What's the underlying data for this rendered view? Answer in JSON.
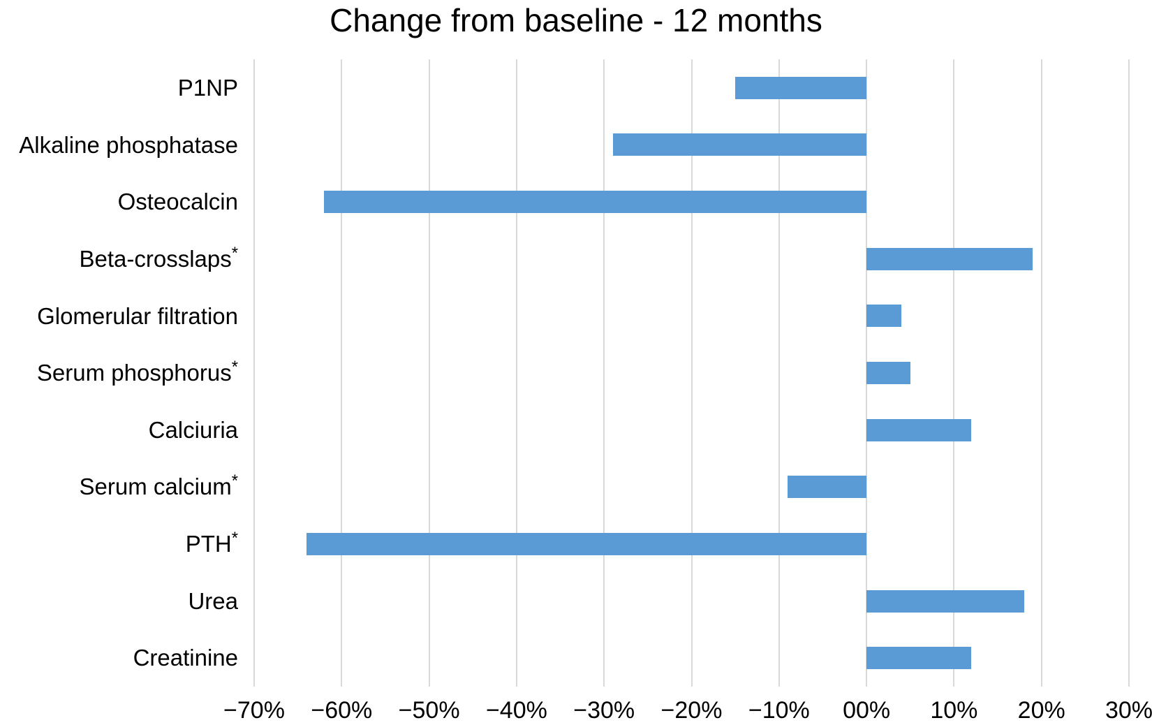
{
  "chart_data": {
    "type": "bar",
    "orientation": "horizontal",
    "title": "Change from baseline - 12 months",
    "unit": "%",
    "categories": [
      {
        "label": "P1NP",
        "sup": ""
      },
      {
        "label": "Alkaline phosphatase",
        "sup": ""
      },
      {
        "label": "Osteocalcin",
        "sup": ""
      },
      {
        "label": "Beta-crosslaps",
        "sup": "*"
      },
      {
        "label": "Glomerular filtration",
        "sup": ""
      },
      {
        "label": "Serum phosphorus",
        "sup": "*"
      },
      {
        "label": "Calciuria",
        "sup": ""
      },
      {
        "label": "Serum calcium",
        "sup": "*"
      },
      {
        "label": "PTH",
        "sup": "*"
      },
      {
        "label": "Urea",
        "sup": ""
      },
      {
        "label": "Creatinine",
        "sup": ""
      }
    ],
    "values": [
      -15,
      -29,
      -62,
      19,
      4,
      5,
      12,
      -9,
      -64,
      18,
      12
    ],
    "xlim": [
      -70,
      30
    ],
    "x_ticks": [
      -70,
      -60,
      -50,
      -40,
      -30,
      -20,
      -10,
      0,
      10,
      20,
      30
    ],
    "x_tick_labels": [
      "−70%",
      "−60%",
      "−50%",
      "−40%",
      "−30%",
      "−20%",
      "−10%",
      "00%",
      "10%",
      "20%",
      "30%"
    ],
    "grid": true,
    "legend": "none",
    "bar_color": "#5b9bd5",
    "gridline_color": "#d9d9d9",
    "background_color": "#ffffff"
  }
}
